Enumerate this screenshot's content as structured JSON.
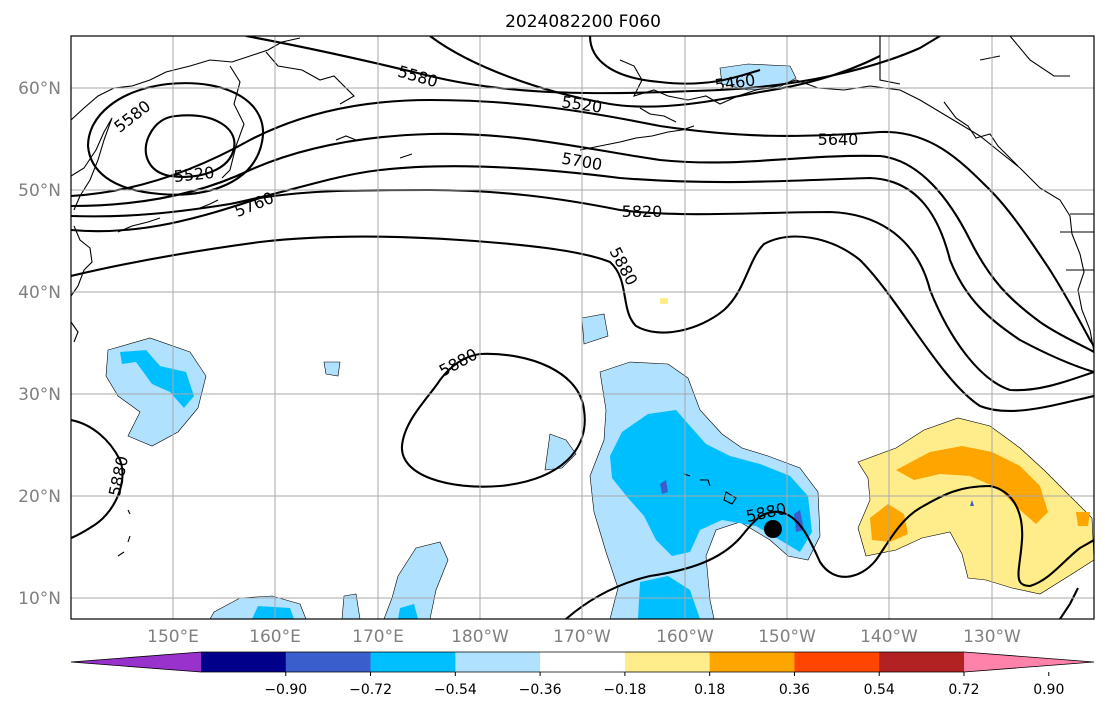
{
  "title": "2024082200 F060",
  "latitude_labels": [
    "60°N",
    "50°N",
    "40°N",
    "30°N",
    "20°N",
    "10°N"
  ],
  "longitude_labels": [
    "150°E",
    "160°E",
    "170°E",
    "180°W",
    "170°W",
    "160°W",
    "150°W",
    "140°W",
    "130°W"
  ],
  "height_contours": [
    {
      "value": 5460,
      "label": "5460"
    },
    {
      "value": 5520,
      "label": "5520"
    },
    {
      "value": 5580,
      "label": "5580"
    },
    {
      "value": 5640,
      "label": "5640"
    },
    {
      "value": 5700,
      "label": "5700"
    },
    {
      "value": 5760,
      "label": "5760"
    },
    {
      "value": 5820,
      "label": "5820"
    },
    {
      "value": 5880,
      "label": "5880"
    }
  ],
  "contour_labels": {
    "c5580_a": "5580",
    "c5580_b": "5580",
    "c5520_a": "5520",
    "c5520_b": "5520",
    "c5460": "5460",
    "c5640": "5640",
    "c5700": "5700",
    "c5760": "5760",
    "c5820": "5820",
    "c5880_a": "5880",
    "c5880_b": "5880",
    "c5880_c": "5880",
    "c5880_d": "5880"
  },
  "colorbar": {
    "ticks": [
      "−0.90",
      "−0.72",
      "−0.54",
      "−0.36",
      "−0.18",
      "0.18",
      "0.36",
      "0.54",
      "0.72",
      "0.90"
    ],
    "colors": [
      "#9932cc",
      "#00008b",
      "#3a5fcd",
      "#00bfff",
      "#b0e2ff",
      "#ffffff",
      "#ffec8b",
      "#ffa500",
      "#ff4500",
      "#b22222",
      "#ff82ab"
    ]
  },
  "marker": {
    "type": "filled-circle",
    "color": "#000000"
  }
}
